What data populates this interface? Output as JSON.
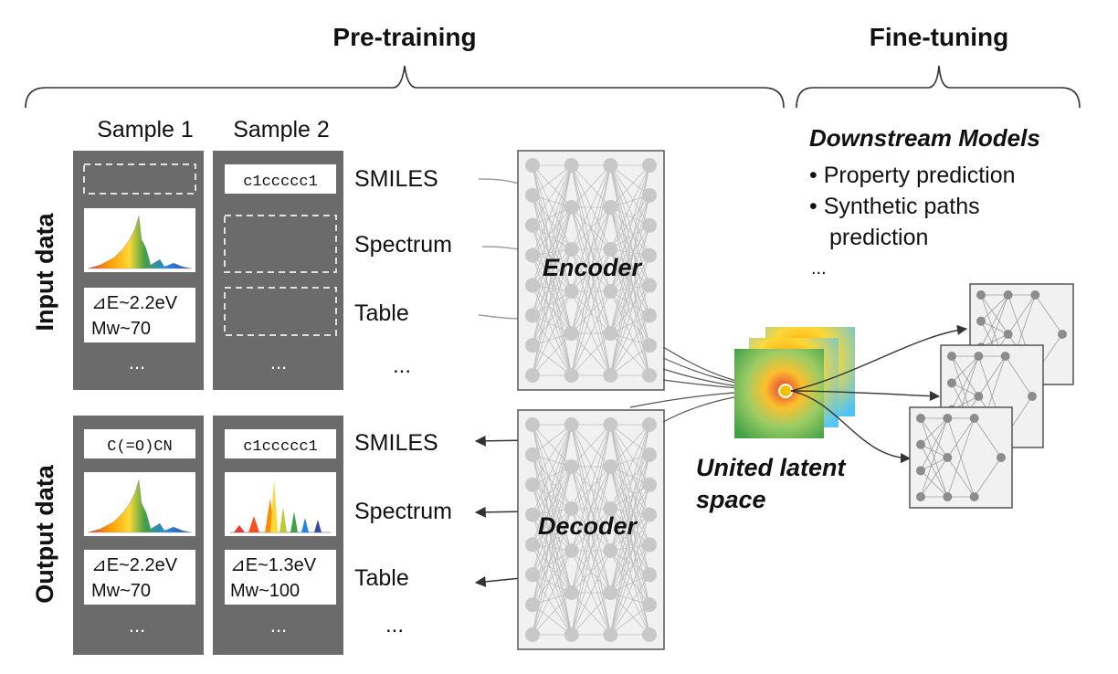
{
  "headers": {
    "pretraining": "Pre-training",
    "finetuning": "Fine-tuning"
  },
  "samples": {
    "s1": "Sample 1",
    "s2": "Sample 2"
  },
  "rows": {
    "input": "Input data",
    "output": "Output data"
  },
  "cells": {
    "smiles_s2": "c1ccccc1",
    "smiles_out_s1": "C(=O)CN",
    "smiles_out_s2": "c1ccccc1",
    "table_s1_dE": "⊿E~2.2eV",
    "table_s1_mw": "Mw~70",
    "table_out_s1_dE": "⊿E~2.2eV",
    "table_out_s1_mw": "Mw~70",
    "table_out_s2_dE": "⊿E~1.3eV",
    "table_out_s2_mw": "Mw~100",
    "ellipsis": "..."
  },
  "modalities": {
    "smiles": "SMILES",
    "spectrum": "Spectrum",
    "table": "Table",
    "more": "..."
  },
  "encoder": "Encoder",
  "decoder": "Decoder",
  "latent": {
    "line1": "United latent",
    "line2": "space"
  },
  "downstream": {
    "title": "Downstream Models",
    "bullet1": "• Property prediction",
    "bullet2": "• Synthetic paths",
    "bullet2b": "prediction",
    "more": "..."
  },
  "colors": {
    "panel": "#6b6b6b",
    "net_bg": "#f1f1f1",
    "net_line": "#bdbdbd",
    "node": "#c8c8c8",
    "ds_node": "#8c8c8c",
    "latent_dot": "#f2c200"
  }
}
